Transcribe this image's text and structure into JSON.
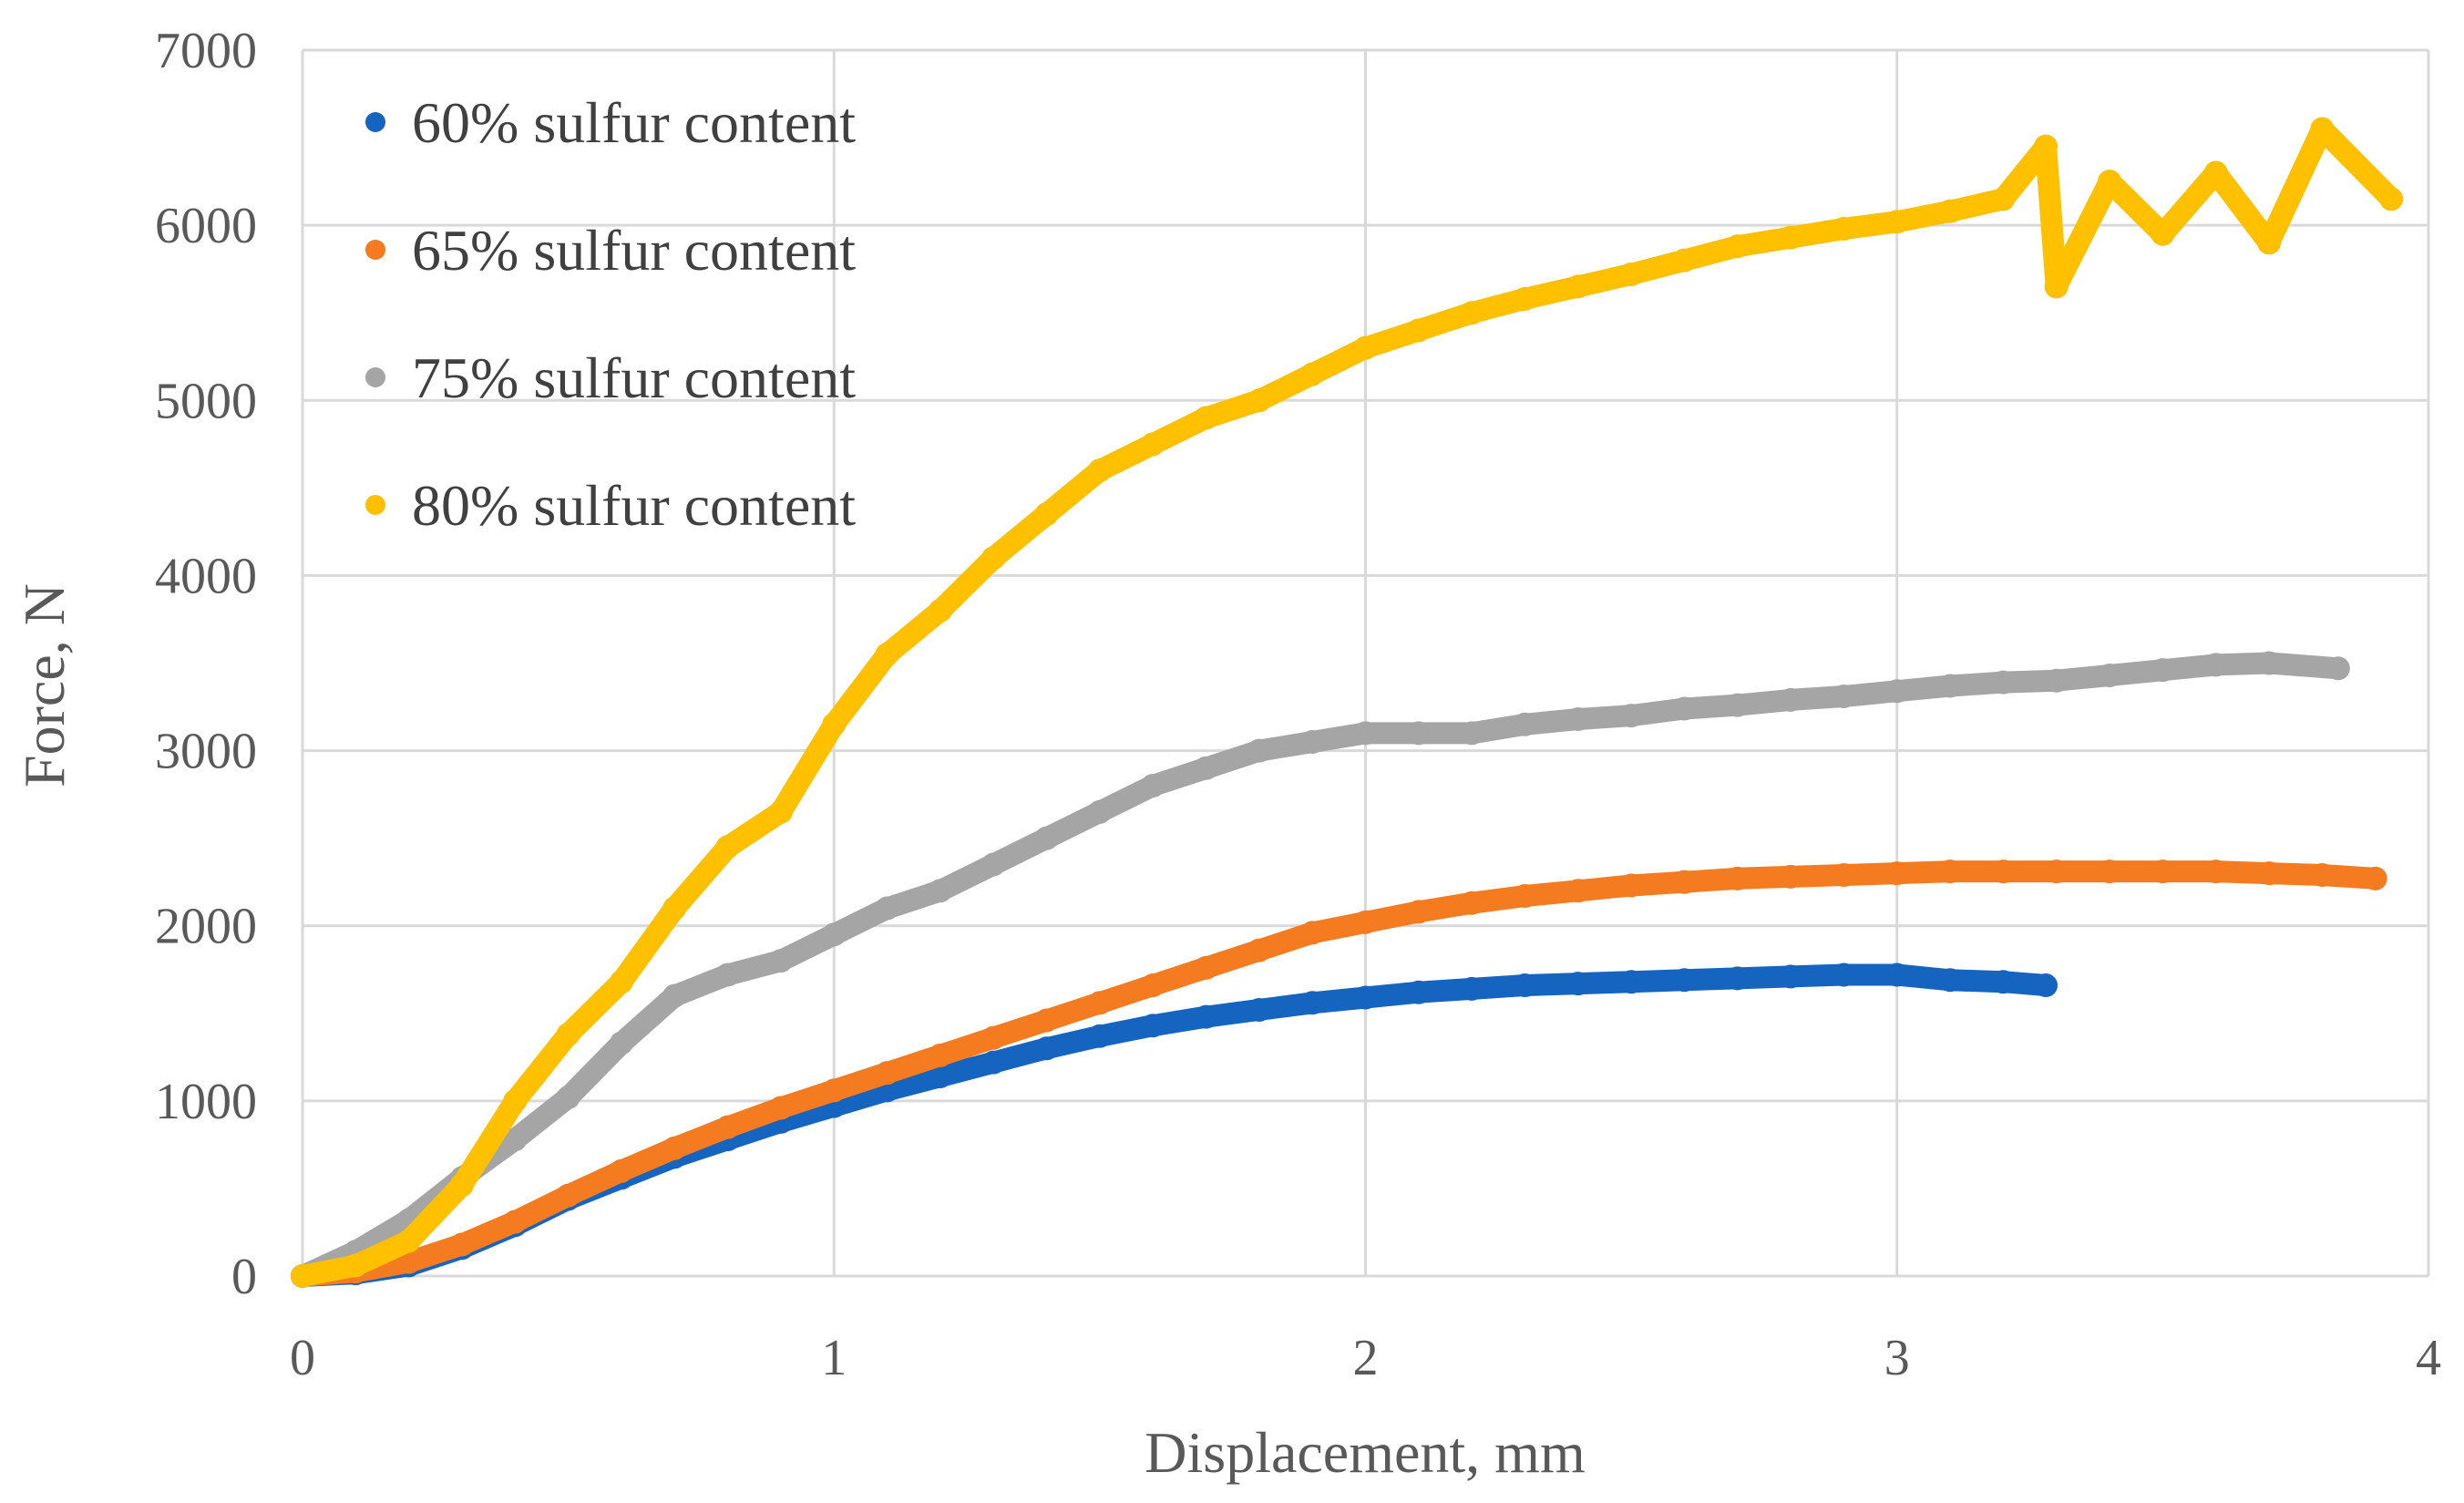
{
  "chart_data": {
    "type": "scatter",
    "title": "",
    "xlabel": "Displacement, mm",
    "ylabel": "Force, N",
    "xlim": [
      0,
      4
    ],
    "ylim": [
      0,
      7000
    ],
    "xticks": [
      0,
      1,
      2,
      3,
      4
    ],
    "yticks": [
      0,
      1000,
      2000,
      3000,
      4000,
      5000,
      6000,
      7000
    ],
    "grid": true,
    "legend_position": "top-left",
    "series": [
      {
        "name": "60% sulfur content",
        "color": "#1565C0",
        "x": [
          0,
          0.1,
          0.2,
          0.3,
          0.4,
          0.5,
          0.6,
          0.7,
          0.8,
          0.9,
          1.0,
          1.1,
          1.2,
          1.3,
          1.4,
          1.5,
          1.6,
          1.7,
          1.8,
          1.9,
          2.0,
          2.1,
          2.2,
          2.3,
          2.4,
          2.5,
          2.6,
          2.7,
          2.8,
          2.9,
          3.0,
          3.1,
          3.2,
          3.28
        ],
        "y": [
          0,
          15,
          60,
          160,
          290,
          440,
          560,
          680,
          780,
          880,
          970,
          1060,
          1140,
          1220,
          1300,
          1370,
          1430,
          1480,
          1520,
          1560,
          1590,
          1620,
          1640,
          1660,
          1670,
          1680,
          1690,
          1700,
          1710,
          1720,
          1720,
          1690,
          1680,
          1660
        ]
      },
      {
        "name": "65% sulfur content",
        "color": "#F47B20",
        "x": [
          0,
          0.1,
          0.2,
          0.3,
          0.4,
          0.5,
          0.6,
          0.7,
          0.8,
          0.9,
          1.0,
          1.1,
          1.2,
          1.3,
          1.4,
          1.5,
          1.6,
          1.7,
          1.8,
          1.9,
          2.0,
          2.1,
          2.2,
          2.3,
          2.4,
          2.5,
          2.6,
          2.7,
          2.8,
          2.9,
          3.0,
          3.1,
          3.2,
          3.3,
          3.4,
          3.5,
          3.6,
          3.7,
          3.8,
          3.9
        ],
        "y": [
          0,
          25,
          80,
          180,
          310,
          460,
          600,
          730,
          850,
          960,
          1060,
          1160,
          1260,
          1360,
          1460,
          1560,
          1660,
          1760,
          1860,
          1960,
          2020,
          2080,
          2130,
          2170,
          2200,
          2230,
          2250,
          2270,
          2280,
          2290,
          2300,
          2310,
          2310,
          2310,
          2310,
          2310,
          2310,
          2300,
          2290,
          2270
        ]
      },
      {
        "name": "75% sulfur content",
        "color": "#A5A5A5",
        "x": [
          0,
          0.1,
          0.2,
          0.3,
          0.4,
          0.5,
          0.6,
          0.7,
          0.8,
          0.9,
          1.0,
          1.1,
          1.2,
          1.3,
          1.4,
          1.5,
          1.6,
          1.7,
          1.8,
          1.9,
          2.0,
          2.1,
          2.2,
          2.3,
          2.4,
          2.5,
          2.6,
          2.7,
          2.8,
          2.9,
          3.0,
          3.1,
          3.2,
          3.3,
          3.4,
          3.5,
          3.6,
          3.7,
          3.83
        ],
        "y": [
          0,
          140,
          320,
          560,
          780,
          1020,
          1330,
          1600,
          1720,
          1800,
          1950,
          2100,
          2200,
          2350,
          2500,
          2650,
          2800,
          2900,
          3000,
          3050,
          3100,
          3100,
          3100,
          3150,
          3180,
          3200,
          3240,
          3260,
          3290,
          3310,
          3340,
          3370,
          3390,
          3400,
          3430,
          3460,
          3490,
          3500,
          3470
        ]
      },
      {
        "name": "80% sulfur content",
        "color": "#FFC000",
        "x": [
          0,
          0.1,
          0.2,
          0.3,
          0.4,
          0.5,
          0.6,
          0.7,
          0.8,
          0.9,
          1.0,
          1.1,
          1.2,
          1.3,
          1.4,
          1.5,
          1.6,
          1.7,
          1.8,
          1.9,
          2.0,
          2.1,
          2.2,
          2.3,
          2.4,
          2.5,
          2.6,
          2.7,
          2.8,
          2.9,
          3.0,
          3.1,
          3.2,
          3.28,
          3.3,
          3.4,
          3.5,
          3.6,
          3.7,
          3.8,
          3.93
        ],
        "y": [
          0,
          60,
          200,
          520,
          1000,
          1380,
          1680,
          2100,
          2450,
          2650,
          3150,
          3550,
          3800,
          4100,
          4350,
          4600,
          4750,
          4900,
          5000,
          5150,
          5300,
          5400,
          5500,
          5580,
          5650,
          5720,
          5800,
          5880,
          5930,
          5980,
          6020,
          6080,
          6150,
          6450,
          5650,
          6250,
          5950,
          6300,
          5900,
          6550,
          6150
        ]
      }
    ]
  }
}
